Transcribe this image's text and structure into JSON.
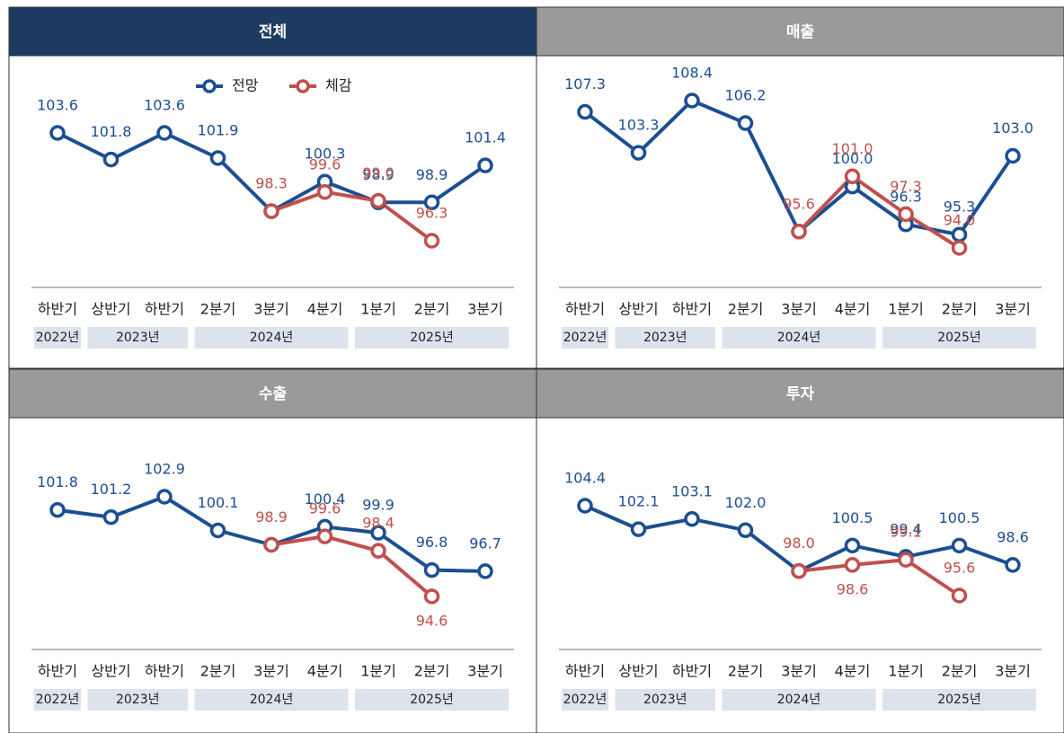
{
  "chart_data": [
    {
      "type": "line",
      "title": "전체",
      "header_color": "#1d3b61",
      "legend": "top",
      "categories": [
        "하반기",
        "상반기",
        "하반기",
        "2분기",
        "3분기",
        "4분기",
        "1분기",
        "2분기",
        "3분기"
      ],
      "groups": [
        {
          "label": "2022년",
          "span": 1
        },
        {
          "label": "2023년",
          "span": 2
        },
        {
          "label": "2024년",
          "span": 3
        },
        {
          "label": "2025년",
          "span": 3
        }
      ],
      "series": [
        {
          "name": "전망",
          "color": "#1c4f91",
          "values": [
            103.6,
            101.8,
            103.6,
            101.9,
            98.3,
            100.3,
            98.9,
            98.9,
            101.4
          ],
          "value_labels": [
            "103.6",
            "101.8",
            "103.6",
            "101.9",
            null,
            "100.3",
            "98.9",
            "98.9",
            "101.4"
          ]
        },
        {
          "name": "체감",
          "color": "#c0504d",
          "values": [
            null,
            null,
            null,
            null,
            98.3,
            99.6,
            99.0,
            96.3,
            null
          ],
          "value_labels": [
            null,
            null,
            null,
            null,
            "98.3",
            "99.6",
            "99.0",
            "96.3",
            null
          ]
        }
      ]
    },
    {
      "type": "line",
      "title": "매출",
      "header_color": "#9a9a9a",
      "categories": [
        "하반기",
        "상반기",
        "하반기",
        "2분기",
        "3분기",
        "4분기",
        "1분기",
        "2분기",
        "3분기"
      ],
      "groups": [
        {
          "label": "2022년",
          "span": 1
        },
        {
          "label": "2023년",
          "span": 2
        },
        {
          "label": "2024년",
          "span": 3
        },
        {
          "label": "2025년",
          "span": 3
        }
      ],
      "series": [
        {
          "name": "전망",
          "color": "#1c4f91",
          "values": [
            107.3,
            103.3,
            108.4,
            106.2,
            95.6,
            100.0,
            96.3,
            95.3,
            103.0
          ],
          "value_labels": [
            "107.3",
            "103.3",
            "108.4",
            "106.2",
            null,
            "100.0",
            "96.3",
            "95.3",
            "103.0"
          ]
        },
        {
          "name": "체감",
          "color": "#c0504d",
          "values": [
            null,
            null,
            null,
            null,
            95.6,
            101.0,
            97.3,
            94.0,
            null
          ],
          "value_labels": [
            null,
            null,
            null,
            null,
            "95.6",
            "101.0",
            "97.3",
            "94.0",
            null
          ]
        }
      ]
    },
    {
      "type": "line",
      "title": "수출",
      "header_color": "#9a9a9a",
      "categories": [
        "하반기",
        "상반기",
        "하반기",
        "2분기",
        "3분기",
        "4분기",
        "1분기",
        "2분기",
        "3분기"
      ],
      "groups": [
        {
          "label": "2022년",
          "span": 1
        },
        {
          "label": "2023년",
          "span": 2
        },
        {
          "label": "2024년",
          "span": 3
        },
        {
          "label": "2025년",
          "span": 3
        }
      ],
      "series": [
        {
          "name": "전망",
          "color": "#1c4f91",
          "values": [
            101.8,
            101.2,
            102.9,
            100.1,
            98.9,
            100.4,
            99.9,
            96.8,
            96.7
          ],
          "value_labels": [
            "101.8",
            "101.2",
            "102.9",
            "100.1",
            null,
            "100.4",
            "99.9",
            "96.8",
            "96.7"
          ]
        },
        {
          "name": "체감",
          "color": "#c0504d",
          "values": [
            null,
            null,
            null,
            null,
            98.9,
            99.6,
            98.4,
            94.6,
            null
          ],
          "value_labels": [
            null,
            null,
            null,
            null,
            "98.9",
            "99.6",
            "98.4",
            "94.6",
            null
          ]
        }
      ]
    },
    {
      "type": "line",
      "title": "투자",
      "header_color": "#9a9a9a",
      "categories": [
        "하반기",
        "상반기",
        "하반기",
        "2분기",
        "3분기",
        "4분기",
        "1분기",
        "2분기",
        "3분기"
      ],
      "groups": [
        {
          "label": "2022년",
          "span": 1
        },
        {
          "label": "2023년",
          "span": 2
        },
        {
          "label": "2024년",
          "span": 3
        },
        {
          "label": "2025년",
          "span": 3
        }
      ],
      "series": [
        {
          "name": "전망",
          "color": "#1c4f91",
          "values": [
            104.4,
            102.1,
            103.1,
            102.0,
            98.0,
            100.5,
            99.4,
            100.5,
            98.6
          ],
          "value_labels": [
            "104.4",
            "102.1",
            "103.1",
            "102.0",
            null,
            "100.5",
            "99.4",
            "100.5",
            "98.6"
          ]
        },
        {
          "name": "체감",
          "color": "#c0504d",
          "values": [
            null,
            null,
            null,
            null,
            98.0,
            98.6,
            99.1,
            95.6,
            null
          ],
          "value_labels": [
            null,
            null,
            null,
            null,
            "98.0",
            "98.6",
            "99.1",
            "95.6",
            null
          ]
        }
      ]
    }
  ]
}
